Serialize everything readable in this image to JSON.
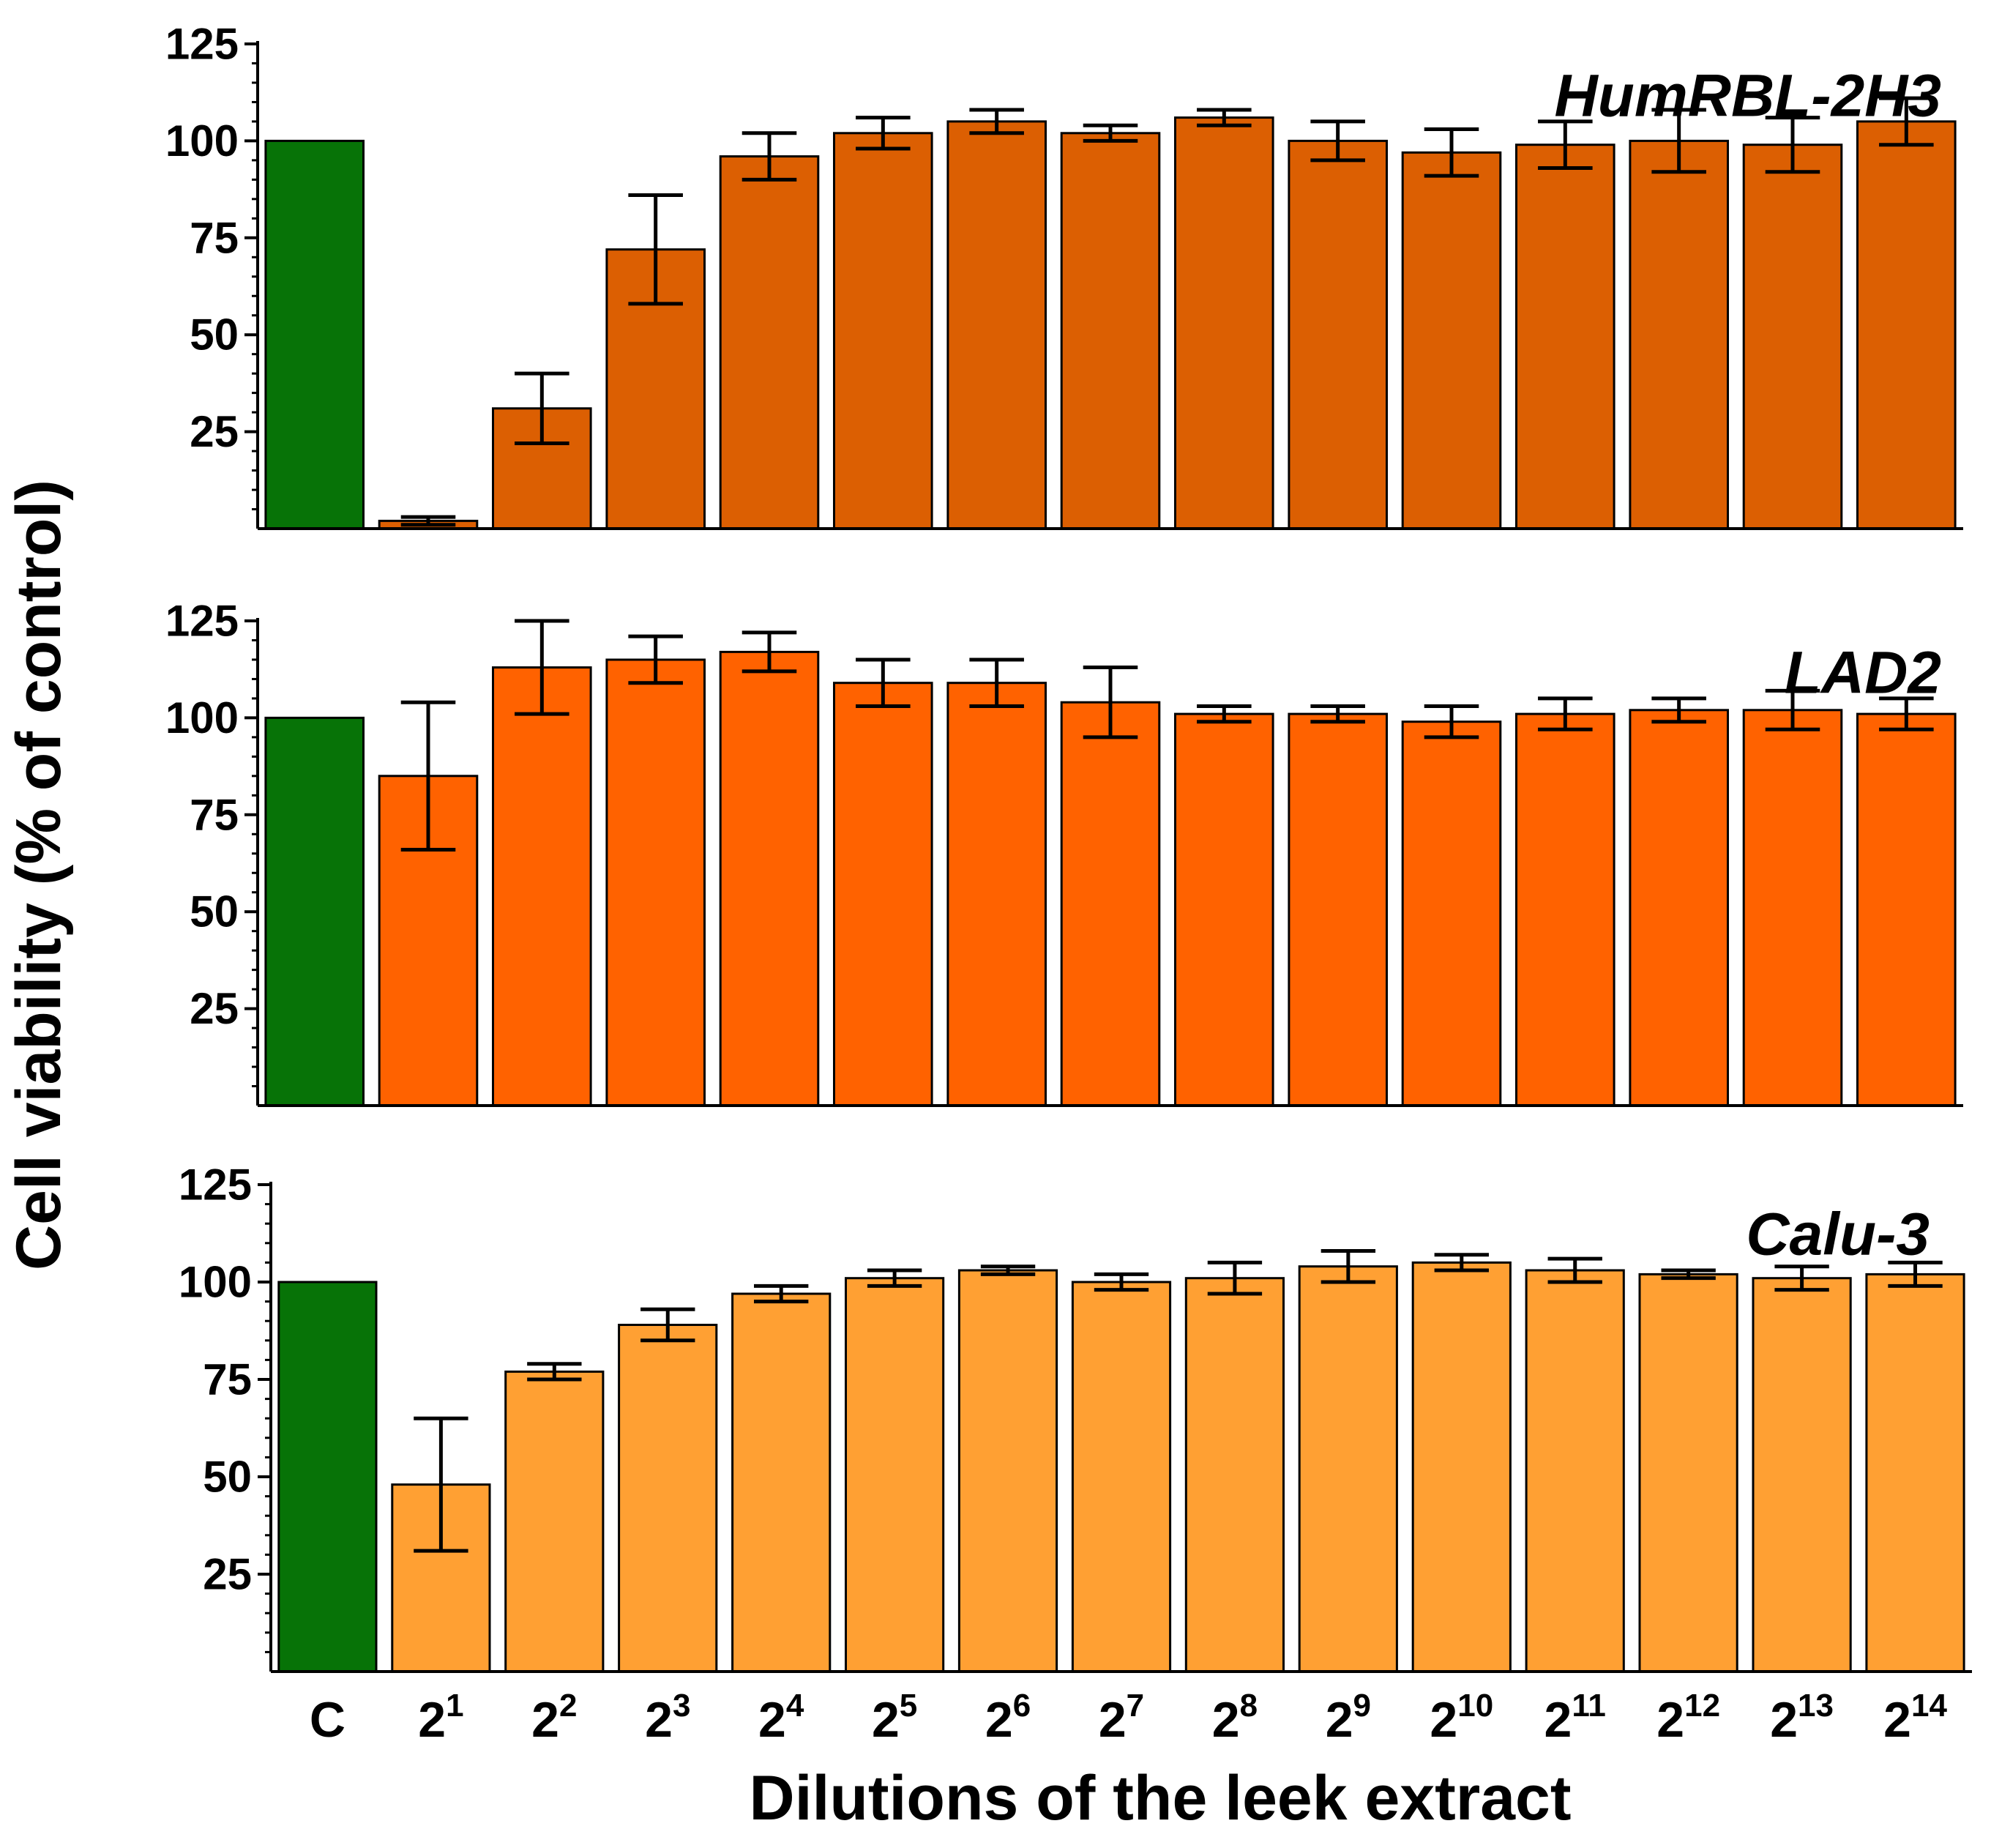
{
  "chart_data": {
    "type": "bar",
    "ylabel": "Cell viability (% of control)",
    "xlabel": "Dilutions of the leek extract",
    "ylim": [
      0,
      125
    ],
    "yticks": [
      "25",
      "50",
      "75",
      "100",
      "125"
    ],
    "categories": [
      {
        "base": "C",
        "exp": ""
      },
      {
        "base": "2",
        "exp": "1"
      },
      {
        "base": "2",
        "exp": "2"
      },
      {
        "base": "2",
        "exp": "3"
      },
      {
        "base": "2",
        "exp": "4"
      },
      {
        "base": "2",
        "exp": "5"
      },
      {
        "base": "2",
        "exp": "6"
      },
      {
        "base": "2",
        "exp": "7"
      },
      {
        "base": "2",
        "exp": "8"
      },
      {
        "base": "2",
        "exp": "9"
      },
      {
        "base": "2",
        "exp": "10"
      },
      {
        "base": "2",
        "exp": "11"
      },
      {
        "base": "2",
        "exp": "12"
      },
      {
        "base": "2",
        "exp": "13"
      },
      {
        "base": "2",
        "exp": "14"
      }
    ],
    "control_color": "#077307",
    "panels": [
      {
        "title": "HumRBL-2H3",
        "color": "#dc5f02",
        "values": [
          100,
          2,
          31,
          72,
          96,
          102,
          105,
          102,
          106,
          100,
          97,
          99,
          100,
          99,
          105
        ],
        "errors": [
          0,
          1,
          9,
          14,
          6,
          4,
          3,
          2,
          2,
          5,
          6,
          6,
          8,
          7,
          6
        ]
      },
      {
        "title": "LAD2",
        "color": "#ff6200",
        "values": [
          100,
          85,
          113,
          115,
          117,
          109,
          109,
          104,
          101,
          101,
          99,
          101,
          102,
          102,
          101
        ],
        "errors": [
          0,
          19,
          12,
          6,
          5,
          6,
          6,
          9,
          2,
          2,
          4,
          4,
          3,
          5,
          4
        ]
      },
      {
        "title": "Calu-3",
        "color": "#ffa033",
        "values": [
          100,
          48,
          77,
          89,
          97,
          101,
          103,
          100,
          101,
          104,
          105,
          103,
          102,
          101,
          102
        ],
        "errors": [
          0,
          17,
          2,
          4,
          2,
          2,
          1,
          2,
          4,
          4,
          2,
          3,
          1,
          3,
          3
        ]
      }
    ]
  }
}
